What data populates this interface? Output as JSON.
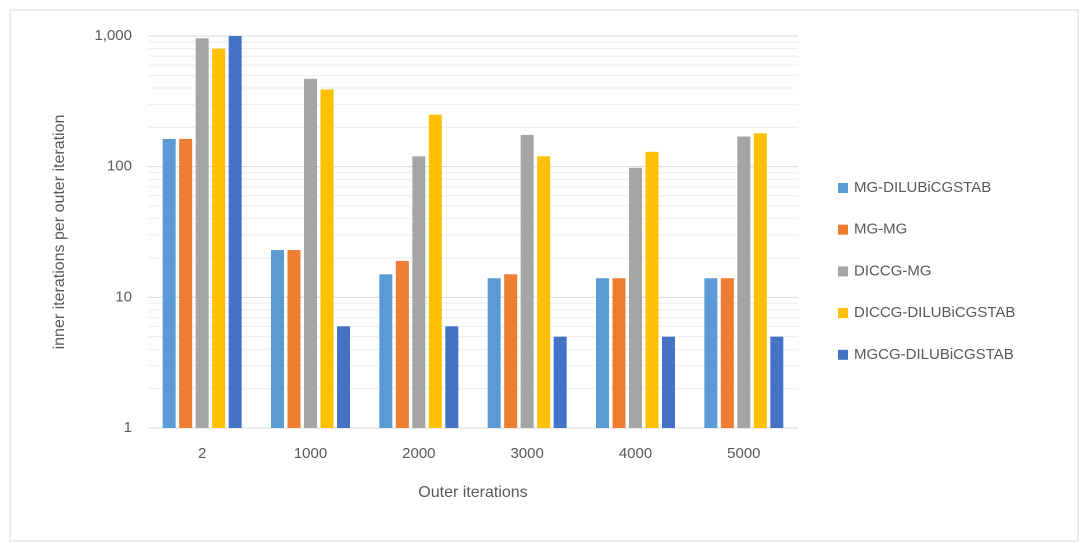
{
  "chart_data": {
    "type": "bar",
    "x_label": "Outer iterations",
    "y_label": "inner iterations per outer iteration",
    "categories": [
      "2",
      "1000",
      "2000",
      "3000",
      "4000",
      "5000"
    ],
    "series": [
      {
        "name": "MG-DILUBiCGSTAB",
        "color": "#5b9bd5",
        "values": [
          163,
          23,
          15,
          14,
          14,
          14
        ]
      },
      {
        "name": "MG-MG",
        "color": "#ed7d31",
        "values": [
          163,
          23,
          19,
          15,
          14,
          14
        ]
      },
      {
        "name": "DICCG-MG",
        "color": "#a5a5a5",
        "values": [
          960,
          470,
          120,
          175,
          98,
          170
        ]
      },
      {
        "name": "DICCG-DILUBiCGSTAB",
        "color": "#ffc000",
        "values": [
          800,
          390,
          250,
          120,
          130,
          180
        ]
      },
      {
        "name": "MGCG-DILUBiCGSTAB",
        "color": "#4472c4",
        "values": [
          1000,
          6,
          6,
          5,
          5,
          5
        ]
      }
    ],
    "ylim": [
      1,
      1000
    ],
    "yticks": [
      1,
      10,
      100,
      {
        "value": 1000,
        "label": "1,000"
      }
    ],
    "log_y": true,
    "grid": true,
    "minor_grid": true,
    "legend": "right"
  }
}
